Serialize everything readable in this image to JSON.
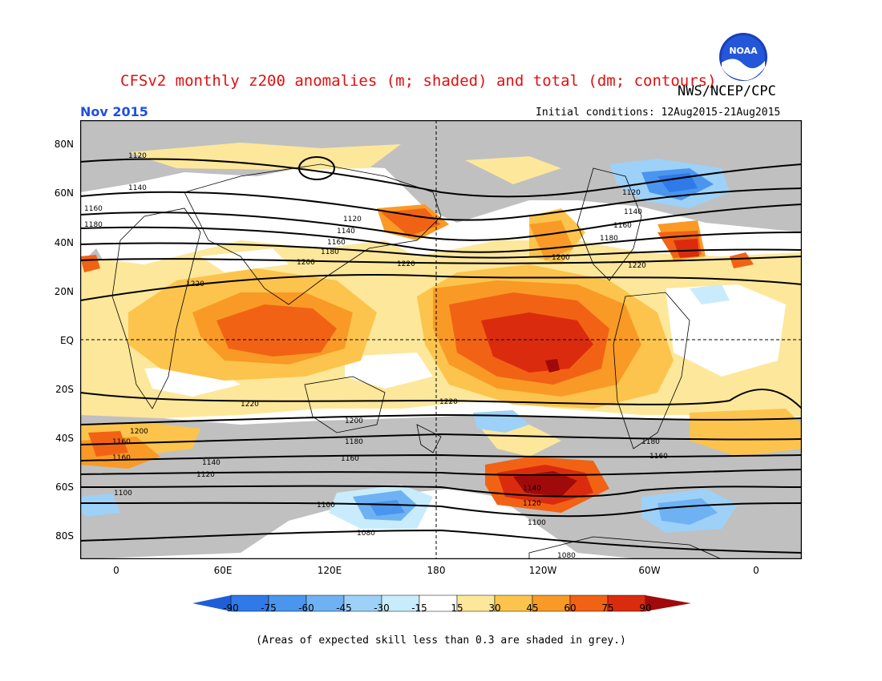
{
  "title": "CFSv2 monthly z200 anomalies (m; shaded) and total (dm; contours)",
  "agency": "NWS/NCEP/CPC",
  "logo_text": "NOAA",
  "month": "Nov 2015",
  "initial_conditions": "Initial conditions: 12Aug2015-21Aug2015",
  "footnote": "(Areas of expected skill less than 0.3 are shaded in grey.)",
  "map": {
    "lat_labels": [
      "80N",
      "60N",
      "40N",
      "20N",
      "EQ",
      "20S",
      "40S",
      "60S",
      "80S"
    ],
    "lon_labels": [
      "0",
      "60E",
      "120E",
      "180",
      "120W",
      "60W",
      "0"
    ],
    "contour_levels": [
      "1080",
      "1100",
      "1120",
      "1140",
      "1160",
      "1180",
      "1200",
      "1220"
    ],
    "contour_labels": [
      "1120",
      "1140",
      "1160",
      "1180",
      "1120",
      "1140",
      "1160",
      "1180",
      "1200",
      "1220",
      "1220",
      "1200",
      "1120",
      "1140",
      "1160",
      "1180",
      "1220",
      "1220",
      "1200",
      "1180",
      "1160",
      "1220",
      "1200",
      "1160",
      "1180",
      "1160",
      "1140",
      "1120",
      "1100",
      "1100",
      "1140",
      "1120",
      "1100",
      "1080",
      "1080",
      "1160"
    ]
  },
  "colorbar": {
    "ticks": [
      "-90",
      "-75",
      "-60",
      "-45",
      "-30",
      "-15",
      "15",
      "30",
      "45",
      "60",
      "75",
      "90"
    ],
    "colors": [
      "#1e5fd8",
      "#2f7ae8",
      "#4a96ee",
      "#6fb2f4",
      "#9dd1f8",
      "#c8ecfb",
      "#ffffff",
      "#fde79a",
      "#fcc44c",
      "#f99a26",
      "#f26214",
      "#db2b0e",
      "#a10a0a"
    ],
    "grey_mask": "#c0c0c0"
  }
}
